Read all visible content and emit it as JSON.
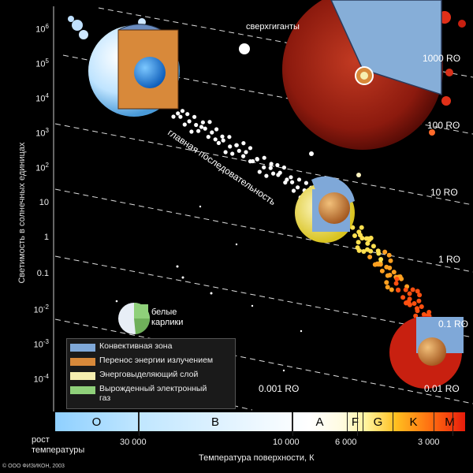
{
  "labels": {
    "supergiants": "сверхгиганты",
    "main_sequence": "главная последовательность",
    "white_dwarfs": "белые\nкарлики",
    "y_axis": "Светимость в солнечных единицах",
    "x_axis": "Температура поверхности, К",
    "temp_growth": "рост\nтемпературы",
    "copyright": "© ООО ФИЗИКОН, 2003"
  },
  "y_ticks": [
    "10^6",
    "10^5",
    "10^4",
    "10^3",
    "10^2",
    "10",
    "1",
    "0.1",
    "10^-2",
    "10^-3",
    "10^-4"
  ],
  "radius_lines": [
    "1000 Rʘ",
    "100 Rʘ",
    "10 Rʘ",
    "1 Rʘ",
    "0.1 Rʘ",
    "0.01 Rʘ",
    "0.001 Rʘ"
  ],
  "spectral_classes": [
    "O",
    "B",
    "A",
    "F",
    "G",
    "K",
    "M"
  ],
  "x_ticks": [
    "30 000",
    "10 000",
    "6 000",
    "3 000"
  ],
  "legend": [
    {
      "label": "Конвективная зона",
      "color": "#7fa8d8"
    },
    {
      "label": "Перенос энергии излучением",
      "color": "#d8893a"
    },
    {
      "label": "Энерговыделяющий слой",
      "color": "#f6efb0"
    },
    {
      "label": "Вырожденный электронный газ",
      "color": "#8fd07a"
    }
  ]
}
